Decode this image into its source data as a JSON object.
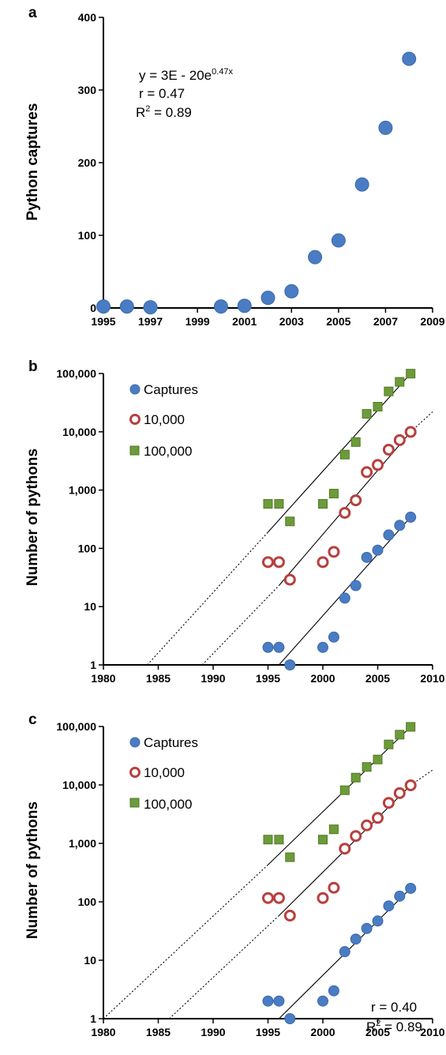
{
  "colors": {
    "captures": "#4a7cc4",
    "captures_dark": "#3d6aa8",
    "ring": "#b8403e",
    "square": "#6d9b3a",
    "square_dark": "#4f7a25"
  },
  "chart_data": [
    {
      "panel": "a",
      "type": "scatter",
      "ylabel": "Python captures",
      "xlim": [
        1995,
        2009
      ],
      "ylim": [
        0,
        400
      ],
      "xticks": [
        1995,
        1997,
        1999,
        2001,
        2003,
        2005,
        2007,
        2009
      ],
      "yticks": [
        0,
        100,
        200,
        300,
        400
      ],
      "scale": "linear",
      "series": [
        {
          "marker": "circle",
          "x": [
            1995,
            1996,
            1997,
            2000,
            2001,
            2002,
            2003,
            2004,
            2005,
            2006,
            2007,
            2008
          ],
          "y": [
            2,
            2,
            1,
            2,
            3,
            14,
            23,
            70,
            93,
            170,
            248,
            343
          ]
        }
      ],
      "fit": {
        "kind": "exponential",
        "coef": 3e-20,
        "rate": 0.47,
        "x": [
          1995,
          2008
        ]
      },
      "annotation": {
        "eq_prefix": "y = 3E - 20e",
        "eq_exp": "0.47x",
        "r": "r = 0.47",
        "r2_prefix": "R",
        "r2_sup": "2",
        "r2_suffix": " = 0.89"
      }
    },
    {
      "panel": "b",
      "type": "scatter",
      "ylabel": "Number of pythons",
      "xlim": [
        1980,
        2010
      ],
      "ylim": [
        1,
        100000
      ],
      "scale": "log",
      "xticks": [
        1980,
        1985,
        1990,
        1995,
        2000,
        2005,
        2010
      ],
      "yticks": [
        1,
        10,
        100,
        1000,
        10000,
        100000
      ],
      "ytick_labels": [
        "1",
        "10",
        "100",
        "1,000",
        "10,000",
        "100,000"
      ],
      "legend_position": "top-left",
      "series": [
        {
          "name": "Captures",
          "marker": "circle",
          "x": [
            1995,
            1996,
            1997,
            2000,
            2001,
            2002,
            2003,
            2004,
            2005,
            2006,
            2007,
            2008
          ],
          "y": [
            2,
            2,
            1,
            2,
            3,
            14,
            23,
            70,
            93,
            170,
            248,
            343
          ]
        },
        {
          "name": "10,000",
          "marker": "ring",
          "x": [
            1995,
            1996,
            1997,
            2000,
            2001,
            2002,
            2003,
            2004,
            2005,
            2006,
            2007,
            2008
          ],
          "y": [
            58,
            58,
            29,
            58,
            87,
            406,
            667,
            2030,
            2697,
            4930,
            7192,
            9947
          ]
        },
        {
          "name": "100,000",
          "marker": "square",
          "x": [
            1995,
            1996,
            1997,
            2000,
            2001,
            2002,
            2003,
            2004,
            2005,
            2006,
            2007,
            2008
          ],
          "y": [
            580,
            580,
            290,
            580,
            870,
            4060,
            6670,
            20300,
            26970,
            49300,
            71920,
            99470
          ]
        }
      ],
      "fits": [
        {
          "style": "solid",
          "x": [
            1996,
            2008
          ],
          "y": [
            1,
            343
          ]
        },
        {
          "style": "dotted",
          "x": [
            1989,
            1996
          ],
          "y": [
            1,
            23
          ]
        },
        {
          "style": "solid",
          "x": [
            1996,
            2008
          ],
          "y": [
            23,
            9947
          ]
        },
        {
          "style": "dotted",
          "x": [
            2008,
            2010
          ],
          "y": [
            9947,
            22000
          ]
        },
        {
          "style": "dotted",
          "x": [
            1984,
            1995
          ],
          "y": [
            1,
            190
          ]
        },
        {
          "style": "solid",
          "x": [
            1995,
            2008
          ],
          "y": [
            190,
            99470
          ]
        }
      ]
    },
    {
      "panel": "c",
      "type": "scatter",
      "ylabel": "Number of pythons",
      "xlim": [
        1980,
        2010
      ],
      "ylim": [
        1,
        100000
      ],
      "scale": "log",
      "xticks": [
        1980,
        1985,
        1990,
        1995,
        2000,
        2005,
        2010
      ],
      "yticks": [
        1,
        10,
        100,
        1000,
        10000,
        100000
      ],
      "ytick_labels": [
        "1",
        "10",
        "100",
        "1,000",
        "10,000",
        "100,000"
      ],
      "legend_position": "top-left",
      "series": [
        {
          "name": "Captures",
          "marker": "circle",
          "x": [
            1995,
            1996,
            1997,
            2000,
            2001,
            2002,
            2003,
            2004,
            2005,
            2006,
            2007,
            2008
          ],
          "y": [
            2,
            2,
            1,
            2,
            3,
            14,
            23,
            35,
            47,
            85,
            125,
            170
          ]
        },
        {
          "name": "10,000",
          "marker": "ring",
          "x": [
            1995,
            1996,
            1997,
            2000,
            2001,
            2002,
            2003,
            2004,
            2005,
            2006,
            2007,
            2008
          ],
          "y": [
            116,
            116,
            58,
            116,
            174,
            812,
            1334,
            2030,
            2726,
            4930,
            7250,
            9860
          ]
        },
        {
          "name": "100,000",
          "marker": "square",
          "x": [
            1995,
            1996,
            1997,
            2000,
            2001,
            2002,
            2003,
            2004,
            2005,
            2006,
            2007,
            2008
          ],
          "y": [
            1160,
            1160,
            580,
            1160,
            1740,
            8120,
            13340,
            20300,
            27260,
            49300,
            72500,
            98600
          ]
        }
      ],
      "fits": [
        {
          "style": "solid",
          "x": [
            1996,
            2008
          ],
          "y": [
            1,
            170
          ]
        },
        {
          "style": "dotted",
          "x": [
            1986,
            1996
          ],
          "y": [
            1,
            58
          ]
        },
        {
          "style": "solid",
          "x": [
            1996,
            2008
          ],
          "y": [
            58,
            9860
          ]
        },
        {
          "style": "dotted",
          "x": [
            2008,
            2010
          ],
          "y": [
            9860,
            18000
          ]
        },
        {
          "style": "dotted",
          "x": [
            1980,
            1995
          ],
          "y": [
            1,
            430
          ]
        },
        {
          "style": "solid",
          "x": [
            1995,
            2008
          ],
          "y": [
            430,
            98600
          ]
        }
      ],
      "annotation": {
        "r": "r = 0.40",
        "r2_prefix": "R",
        "r2_sup": "2",
        "r2_suffix": " = 0.89"
      }
    }
  ]
}
